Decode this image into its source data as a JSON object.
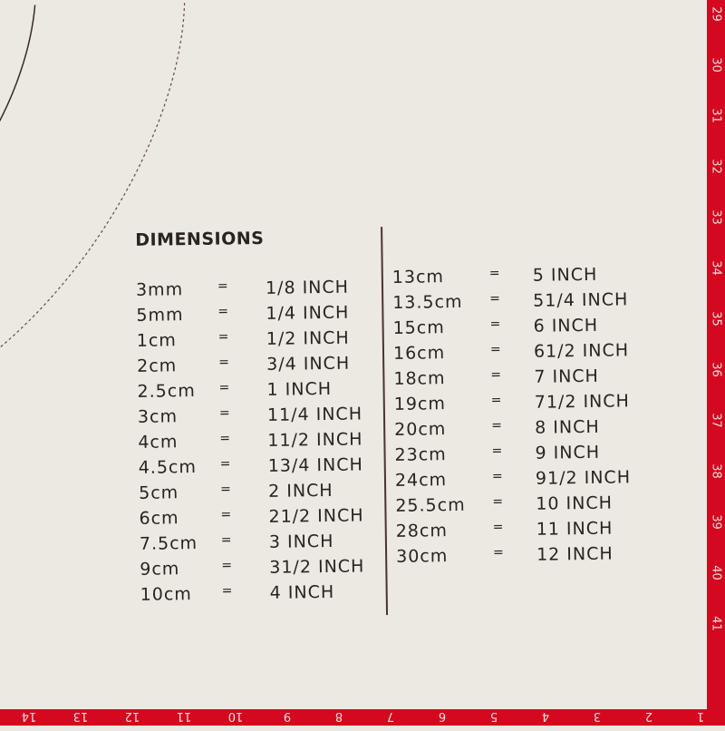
{
  "title": "DIMENSIONS",
  "colors": {
    "mat": "#ece8e2",
    "border": "#d4091f",
    "text": "#2a2320"
  },
  "left_column": [
    {
      "metric": "3mm",
      "eq": "=",
      "imperial": "1/8 INCH"
    },
    {
      "metric": "5mm",
      "eq": "=",
      "imperial": "1/4 INCH"
    },
    {
      "metric": "1cm",
      "eq": "=",
      "imperial": "1/2 INCH"
    },
    {
      "metric": "2cm",
      "eq": "=",
      "imperial": "3/4 INCH"
    },
    {
      "metric": "2.5cm",
      "eq": "=",
      "imperial": "1 INCH"
    },
    {
      "metric": "3cm",
      "eq": "=",
      "imperial": "11/4 INCH"
    },
    {
      "metric": "4cm",
      "eq": "=",
      "imperial": "11/2 INCH"
    },
    {
      "metric": "4.5cm",
      "eq": "=",
      "imperial": "13/4 INCH"
    },
    {
      "metric": "5cm",
      "eq": "=",
      "imperial": "2 INCH"
    },
    {
      "metric": "6cm",
      "eq": "=",
      "imperial": "21/2 INCH"
    },
    {
      "metric": "7.5cm",
      "eq": "=",
      "imperial": "3 INCH"
    },
    {
      "metric": "9cm",
      "eq": "=",
      "imperial": "31/2 INCH"
    },
    {
      "metric": "10cm",
      "eq": "=",
      "imperial": "4 INCH"
    }
  ],
  "right_column": [
    {
      "metric": "13cm",
      "eq": "=",
      "imperial": "5 INCH"
    },
    {
      "metric": "13.5cm",
      "eq": "=",
      "imperial": "51/4 INCH"
    },
    {
      "metric": "15cm",
      "eq": "=",
      "imperial": "6 INCH"
    },
    {
      "metric": "16cm",
      "eq": "=",
      "imperial": "61/2 INCH"
    },
    {
      "metric": "18cm",
      "eq": "=",
      "imperial": "7 INCH"
    },
    {
      "metric": "19cm",
      "eq": "=",
      "imperial": "71/2 INCH"
    },
    {
      "metric": "20cm",
      "eq": "=",
      "imperial": "8 INCH"
    },
    {
      "metric": "23cm",
      "eq": "=",
      "imperial": "9 INCH"
    },
    {
      "metric": "24cm",
      "eq": "=",
      "imperial": "91/2 INCH"
    },
    {
      "metric": "25.5cm",
      "eq": "=",
      "imperial": "10 INCH"
    },
    {
      "metric": "28cm",
      "eq": "=",
      "imperial": "11 INCH"
    },
    {
      "metric": "30cm",
      "eq": "=",
      "imperial": "12 INCH"
    }
  ],
  "ruler_right": [
    "29",
    "30",
    "31",
    "32",
    "33",
    "34",
    "35",
    "36",
    "37",
    "38",
    "39",
    "40",
    "41"
  ],
  "ruler_bottom": [
    "14",
    "13",
    "12",
    "11",
    "10",
    "9",
    "8",
    "7",
    "6",
    "5",
    "4",
    "3",
    "2",
    "1"
  ]
}
